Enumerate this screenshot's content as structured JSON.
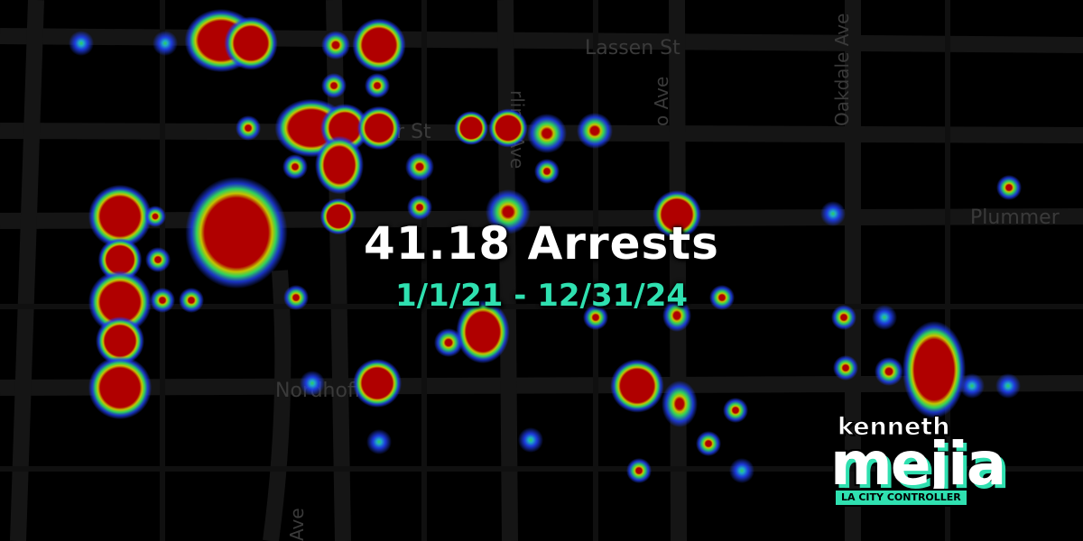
{
  "title": "41.18 Arrests",
  "date_range": "1/1/21 - 12/31/24",
  "colors": {
    "background": "#000000",
    "street": "#141414",
    "street_label": "#3a3a3a",
    "title": "#ffffff",
    "accent": "#2fe0b0",
    "heat_high": "#b00000",
    "heat_mid": "#2fd15a",
    "heat_low": "#1f3ff0"
  },
  "street_labels": [
    {
      "text": "Lassen St"
    },
    {
      "text": "Superior St"
    },
    {
      "text": "Nordhoff St"
    },
    {
      "text": "Plummer"
    },
    {
      "text": "Oakdale Ave"
    },
    {
      "text": "rline Ave"
    },
    {
      "text": "o Ave"
    },
    {
      "text": "Ave"
    }
  ],
  "logo": {
    "first_name": "kenneth",
    "last_name": "mejia",
    "tagline": "LA CITY CONTROLLER"
  },
  "heat_points": [
    {
      "intensity": "high"
    },
    {
      "intensity": "high"
    },
    {
      "intensity": "low"
    },
    {
      "intensity": "low"
    },
    {
      "intensity": "mid"
    },
    {
      "intensity": "high"
    },
    {
      "intensity": "mid"
    },
    {
      "intensity": "mid"
    },
    {
      "intensity": "high"
    },
    {
      "intensity": "high"
    },
    {
      "intensity": "mid"
    },
    {
      "intensity": "high"
    },
    {
      "intensity": "mid"
    },
    {
      "intensity": "mid"
    },
    {
      "intensity": "high"
    },
    {
      "intensity": "high"
    },
    {
      "intensity": "high"
    },
    {
      "intensity": "mid"
    },
    {
      "intensity": "mid"
    },
    {
      "intensity": "mid"
    },
    {
      "intensity": "high"
    },
    {
      "intensity": "high"
    },
    {
      "intensity": "mid"
    },
    {
      "intensity": "mid"
    },
    {
      "intensity": "high"
    },
    {
      "intensity": "mid"
    },
    {
      "intensity": "low"
    },
    {
      "intensity": "high"
    },
    {
      "intensity": "high"
    },
    {
      "intensity": "high"
    },
    {
      "intensity": "high"
    },
    {
      "intensity": "mid"
    },
    {
      "intensity": "mid"
    },
    {
      "intensity": "mid"
    },
    {
      "intensity": "mid"
    },
    {
      "intensity": "high"
    },
    {
      "intensity": "mid"
    },
    {
      "intensity": "low"
    },
    {
      "intensity": "low"
    },
    {
      "intensity": "high"
    },
    {
      "intensity": "mid"
    },
    {
      "intensity": "mid"
    },
    {
      "intensity": "high"
    },
    {
      "intensity": "mid"
    },
    {
      "intensity": "high"
    },
    {
      "intensity": "mid"
    },
    {
      "intensity": "mid"
    },
    {
      "intensity": "mid"
    },
    {
      "intensity": "low"
    },
    {
      "intensity": "low"
    },
    {
      "intensity": "mid"
    },
    {
      "intensity": "high"
    },
    {
      "intensity": "mid"
    },
    {
      "intensity": "mid"
    },
    {
      "intensity": "low"
    },
    {
      "intensity": "mid"
    },
    {
      "intensity": "low"
    },
    {
      "intensity": "mid"
    },
    {
      "intensity": "low"
    }
  ]
}
